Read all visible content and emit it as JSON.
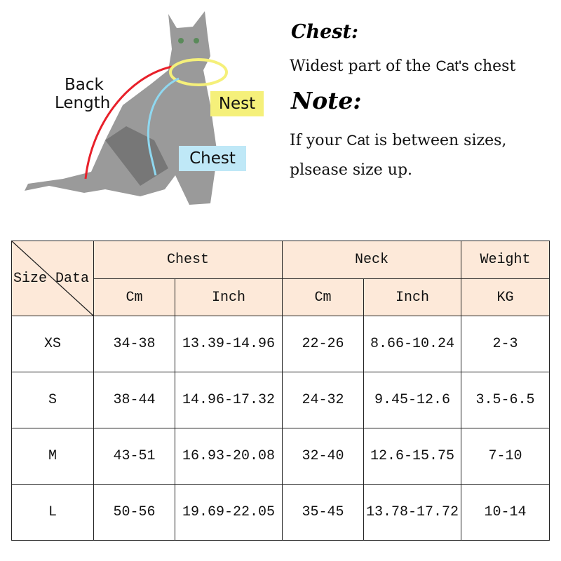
{
  "illustration": {
    "labels": {
      "back_length_1": "Back",
      "back_length_2": "Length",
      "neck": "Nest",
      "chest": "Chest"
    },
    "colors": {
      "back_length": "#e8202a",
      "neck": "#f5f07a",
      "chest": "#bfe8f7"
    }
  },
  "notes": {
    "chest_heading": "Chest:",
    "chest_pre": "Widest part of the",
    "chest_cat": "Cat's",
    "chest_post": "chest",
    "note_heading": "Note:",
    "note_pre": "If your",
    "note_cat": "Cat",
    "note_post": "is between sizes,",
    "note_line2": "plsease size up."
  },
  "table": {
    "corner_label": "Size Data",
    "groups": [
      "Chest",
      "Neck",
      "Weight"
    ],
    "subheaders": [
      "Cm",
      "Inch",
      "Cm",
      "Inch",
      "KG"
    ],
    "header_bg": "#fde9d9",
    "rows": [
      [
        "XS",
        "34-38",
        "13.39-14.96",
        "22-26",
        "8.66-10.24",
        "2-3"
      ],
      [
        "S",
        "38-44",
        "14.96-17.32",
        "24-32",
        "9.45-12.6",
        "3.5-6.5"
      ],
      [
        "M",
        "43-51",
        "16.93-20.08",
        "32-40",
        "12.6-15.75",
        "7-10"
      ],
      [
        "L",
        "50-56",
        "19.69-22.05",
        "35-45",
        "13.78-17.72",
        "10-14"
      ]
    ]
  }
}
